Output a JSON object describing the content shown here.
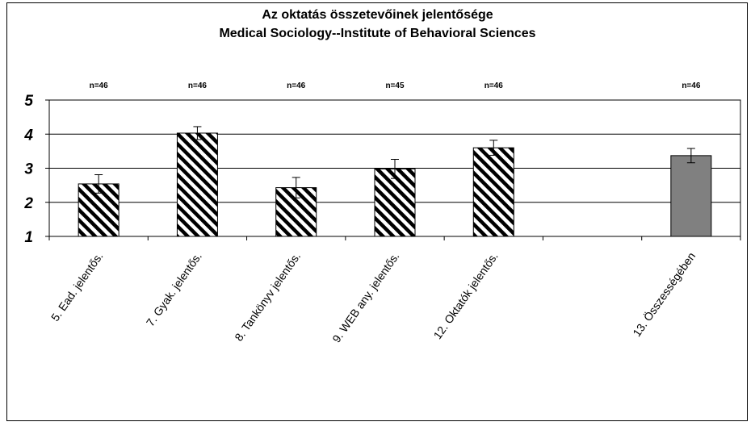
{
  "chart_data": {
    "type": "bar",
    "title": "Az oktatás összetevőinek jelentősége",
    "subtitle": "Medical Sociology--Institute of Behavioral Sciences",
    "xlabel": "",
    "ylabel": "",
    "ylim": [
      1,
      5
    ],
    "yticks": [
      "1",
      "2",
      "3",
      "4",
      "5"
    ],
    "grid": true,
    "categories": [
      "5. Ead. jelentős.",
      "7. Gyak. jelentős.",
      "8. Tankönyv jelentős.",
      "9. WEB any. jelentős.",
      "12. Oktatók jelentős.",
      "",
      "13. Összességében"
    ],
    "values": [
      2.54,
      4.03,
      2.43,
      2.98,
      3.6,
      null,
      3.37
    ],
    "error_bars": [
      0.27,
      0.19,
      0.3,
      0.28,
      0.22,
      null,
      0.21
    ],
    "n_labels": [
      "n=46",
      "n=46",
      "n=46",
      "n=45",
      "n=46",
      "",
      "n=46"
    ],
    "bar_styles": [
      "hatched",
      "hatched",
      "hatched",
      "hatched",
      "hatched",
      "none",
      "solid"
    ],
    "colors": {
      "hatch": "#000000",
      "solid": "#808080",
      "axis": "#000000"
    }
  }
}
